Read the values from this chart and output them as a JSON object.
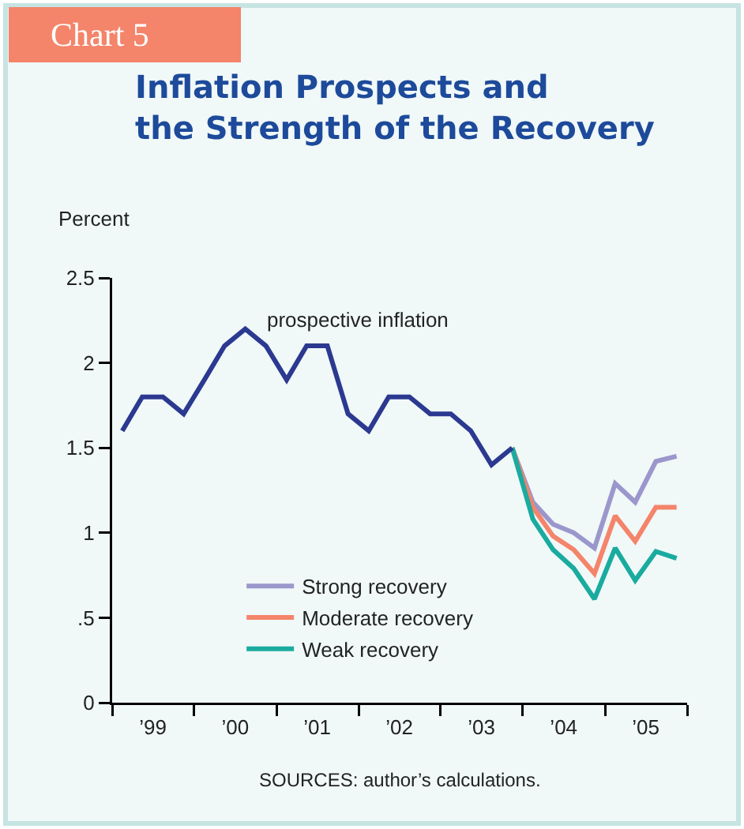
{
  "chart_data": {
    "type": "line",
    "title": "Inflation Prospects and the Strength of the Recovery",
    "ylabel": "Percent",
    "annotations": [
      "Chart 5",
      "SOURCES: author’s calculations."
    ],
    "xlim": [
      "1999-01-01",
      "2006-01-01"
    ],
    "xticks": [
      {
        "value": "1999-01-01",
        "label": null
      },
      {
        "value": "1999-07-01",
        "label": "’99"
      },
      {
        "value": "2000-01-01",
        "label": null
      },
      {
        "value": "2000-07-01",
        "label": "’00"
      },
      {
        "value": "2001-01-01",
        "label": null
      },
      {
        "value": "2001-07-01",
        "label": "’01"
      },
      {
        "value": "2002-01-01",
        "label": null
      },
      {
        "value": "2002-07-01",
        "label": "’02"
      },
      {
        "value": "2003-01-01",
        "label": null
      },
      {
        "value": "2003-07-01",
        "label": "’03"
      },
      {
        "value": "2004-01-01",
        "label": null
      },
      {
        "value": "2004-07-01",
        "label": "’04"
      },
      {
        "value": "2005-01-01",
        "label": null
      },
      {
        "value": "2005-07-01",
        "label": "’05"
      },
      {
        "value": "2006-01-01",
        "label": null
      }
    ],
    "ylim": [
      0,
      2.5
    ],
    "yticks": [
      0,
      {
        "value": 0.5,
        "label": ".5"
      },
      1,
      1.5,
      2,
      2.5
    ],
    "grid": false,
    "legend": "bottom",
    "marker": "none",
    "line_style": "solid",
    "series": [
      {
        "name": "prospective inflation",
        "color": "#2b3990",
        "x": [
          "1999-02-15",
          "1999-05-15",
          "1999-08-15",
          "1999-11-15",
          "2000-02-15",
          "2000-05-15",
          "2000-08-15",
          "2000-11-15",
          "2001-02-15",
          "2001-05-15",
          "2001-08-15",
          "2001-11-15",
          "2002-02-15",
          "2002-05-15",
          "2002-08-15",
          "2002-11-15",
          "2003-02-15",
          "2003-05-15",
          "2003-08-15",
          "2003-11-15"
        ],
        "values": [
          1.6,
          1.8,
          1.8,
          1.7,
          1.9,
          2.1,
          2.2,
          2.1,
          1.9,
          2.1,
          2.1,
          1.7,
          1.6,
          1.8,
          1.8,
          1.7,
          1.7,
          1.6,
          1.4,
          1.5
        ]
      },
      {
        "name": "Strong recovery",
        "color": "#9b97cc",
        "x": [
          "2003-11-15",
          "2004-02-15",
          "2004-05-15",
          "2004-08-15",
          "2004-11-15",
          "2005-02-15",
          "2005-05-15",
          "2005-08-15",
          "2005-11-15"
        ],
        "values": [
          1.5,
          1.18,
          1.05,
          1.0,
          0.91,
          1.29,
          1.18,
          1.42,
          1.45
        ]
      },
      {
        "name": "Moderate recovery",
        "color": "#f4846a",
        "x": [
          "2003-11-15",
          "2004-02-15",
          "2004-05-15",
          "2004-08-15",
          "2004-11-15",
          "2005-02-15",
          "2005-05-15",
          "2005-08-15",
          "2005-11-15"
        ],
        "values": [
          1.5,
          1.15,
          0.98,
          0.9,
          0.76,
          1.1,
          0.95,
          1.15,
          1.15
        ]
      },
      {
        "name": "Weak recovery",
        "color": "#1aab9f",
        "x": [
          "2003-11-15",
          "2004-02-15",
          "2004-05-15",
          "2004-08-15",
          "2004-11-15",
          "2005-02-15",
          "2005-05-15",
          "2005-08-15",
          "2005-11-15"
        ],
        "values": [
          1.5,
          1.08,
          0.9,
          0.79,
          0.61,
          0.91,
          0.72,
          0.89,
          0.85
        ]
      }
    ]
  }
}
